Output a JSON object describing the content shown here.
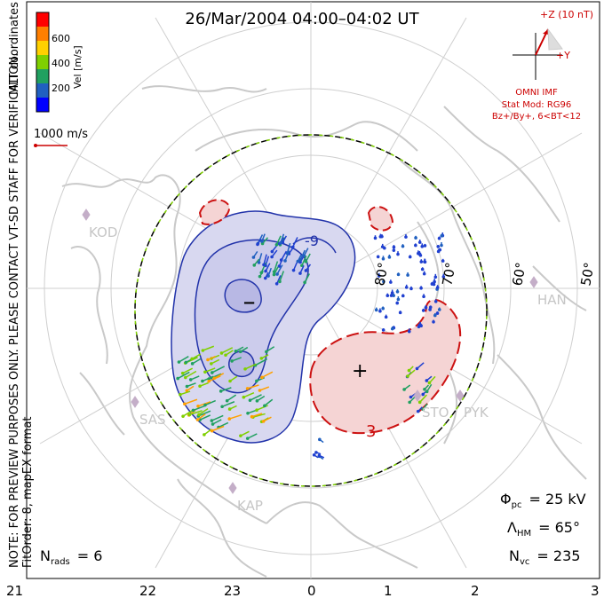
{
  "title": "26/Mar/2004 04:00–04:02 UT",
  "colorbar": {
    "label": "Vel [m/s]",
    "ticks": [
      "600",
      "400",
      "200"
    ],
    "colors": [
      "#ff0000",
      "#ff7f00",
      "#ffd000",
      "#7fd000",
      "#20a060",
      "#2060c0",
      "#0000ff"
    ]
  },
  "coord_system": "MLT coordinates",
  "reference_vector": {
    "label": "1000 m/s"
  },
  "side_note": "NOTE: FOR PREVIEW PURPOSES ONLY. PLEASE CONTACT VT-SD STAFF FOR VERIFICATION.",
  "fitorder_note": "FitOrder: 8, mapEX format",
  "imf_panel": {
    "z_label": "+Z (10 nT)",
    "y_label": "+Y",
    "source": "OMNI IMF",
    "stat_model": "Stat Mod: RG96",
    "condition": "Bz+/By+, 6<BT<12"
  },
  "latitude_labels": [
    "80°",
    "70°",
    "60°",
    "50°"
  ],
  "station_labels": [
    "KOD",
    "SAS",
    "KAP",
    "HAN",
    "STO",
    "PYK"
  ],
  "contour_labels": {
    "negative": "-9",
    "positive": "3",
    "min_marker": "−",
    "max_marker": "+"
  },
  "stats": {
    "phi_pc_label": "Φ",
    "phi_pc_sub": "pc",
    "phi_pc_value": "= 25 kV",
    "lambda_hm_label": "Λ",
    "lambda_hm_sub": "HM",
    "lambda_hm_value": "= 65°",
    "n_vc_label": "N",
    "n_vc_sub": "vc",
    "n_vc_value": "= 235",
    "n_rads_label": "N",
    "n_rads_sub": "rads",
    "n_rads_value": "= 6"
  },
  "mlt_axis": [
    "21",
    "22",
    "23",
    "0",
    "1",
    "2",
    "3"
  ],
  "colors": {
    "negative_fill": "#d8d8f0",
    "negative_line": "#2233aa",
    "positive_fill": "#f5d4d4",
    "positive_line": "#cc1111",
    "coast": "#c9c9c9",
    "grid": "#cfcfcf",
    "station": "#c4aec8"
  }
}
